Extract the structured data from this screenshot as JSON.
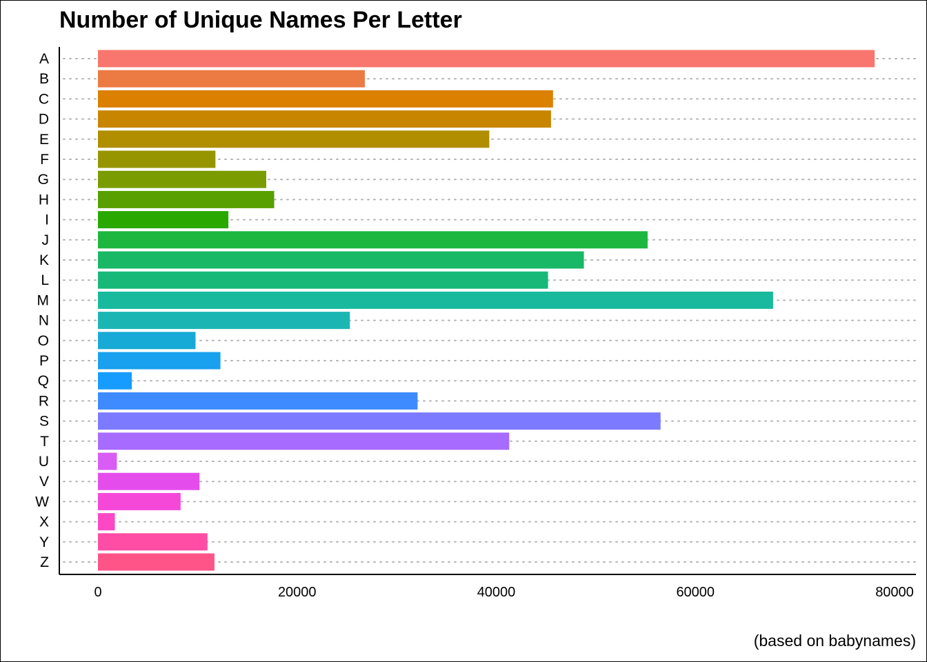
{
  "chart_data": {
    "type": "bar",
    "orientation": "horizontal",
    "title": "Number of Unique Names Per Letter",
    "caption": "(based on babynames)",
    "xlabel": "",
    "ylabel": "",
    "xlim": [
      0,
      80000
    ],
    "x_ticks": [
      0,
      20000,
      40000,
      60000,
      80000
    ],
    "grid": "dotted horizontal lines at each category",
    "legend": "none",
    "categories": [
      "A",
      "B",
      "C",
      "D",
      "E",
      "F",
      "G",
      "H",
      "I",
      "J",
      "K",
      "L",
      "M",
      "N",
      "O",
      "P",
      "Q",
      "R",
      "S",
      "T",
      "U",
      "V",
      "W",
      "X",
      "Y",
      "Z"
    ],
    "values": [
      78000,
      26800,
      45700,
      45500,
      39300,
      11800,
      16900,
      17700,
      13100,
      55200,
      48800,
      45200,
      67800,
      25300,
      9800,
      12300,
      3400,
      32100,
      56500,
      41300,
      1900,
      10200,
      8300,
      1700,
      11000,
      11700
    ],
    "colors": [
      "#F8766D",
      "#EC7B43",
      "#DB8000",
      "#C88600",
      "#B08E00",
      "#969500",
      "#7A9C00",
      "#57A000",
      "#29A800",
      "#1DB740",
      "#19B866",
      "#18B978",
      "#18B99C",
      "#1BB6B4",
      "#18AAD6",
      "#19A0EE",
      "#169CFF",
      "#3D8BFF",
      "#7C7BFF",
      "#A76BFF",
      "#D95CF5",
      "#E44DEC",
      "#F548D9",
      "#FC48C4",
      "#FF4DA6",
      "#FF5487"
    ]
  }
}
